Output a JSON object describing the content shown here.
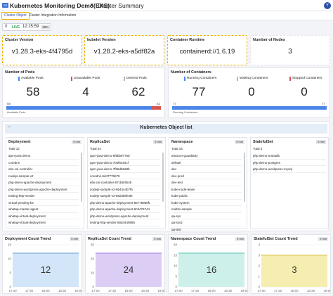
{
  "header": {
    "logo": "CF",
    "app": "Kubernetes Monitoring Demo(EKS)",
    "page": "Cluster Summary",
    "avatar": "Y"
  },
  "tabs": [
    "Cluster Object",
    "Cluster Integration Information"
  ],
  "toolbar": {
    "live": "LIVE",
    "time": "12:25:59",
    "range": "10m"
  },
  "info_cards": [
    {
      "title": "Cluster Version",
      "value": "v1.28.3-eks-4f4795d"
    },
    {
      "title": "kubelet Version",
      "value": "v1.28.2-eks-a5df82a"
    },
    {
      "title": "Container Runtime",
      "value": "containerd://1.6.19"
    },
    {
      "title": "Number of Nodes",
      "value": "3"
    }
  ],
  "pods": {
    "title": "Number of Pods",
    "items": [
      {
        "label": "Available Pods",
        "value": 58,
        "color": "#4a86e8"
      },
      {
        "label": "Unavailable Pods",
        "value": 4,
        "color": "#d9534f"
      },
      {
        "label": "Desired Pods",
        "value": 62,
        "color": "#b0b4bc"
      }
    ],
    "bar_caption": "Available Pods"
  },
  "containers": {
    "title": "Number of Containers",
    "items": [
      {
        "label": "Running Containers",
        "value": 77,
        "color": "#4a86e8"
      },
      {
        "label": "Waiting Containers",
        "value": 0,
        "color": "#f0ad4e"
      },
      {
        "label": "Stopped Containers",
        "value": 0,
        "color": "#d9534f"
      }
    ],
    "bar_caption": "Running Containers"
  },
  "object_list": {
    "title": "Kubernetes Object list",
    "panels": [
      {
        "title": "Deployment",
        "badge": "5 min",
        "total": "Total 12",
        "items": [
          "apm-java-demo",
          "coredns",
          "ebs-csi-controller",
          "nodejs-sample-v2",
          "php-demo-apache-deployment",
          "php-demo-wordpress-apache-deployment",
          "testing-http-sender",
          "virtual-pending-be",
          "whatap-master-agent",
          "whatap-virtual-deployment",
          "whatap-virtual-deployment"
        ]
      },
      {
        "title": "ReplicaSet",
        "badge": "5 min",
        "total": "Total 24",
        "items": [
          "apm-java-demo-6f6bb9776d",
          "apm-java-demo-7b6f6484cf",
          "apm-java-demo-7fb5db5d8b",
          "coredns-6d4777bb79",
          "ebs-csi-controller-57cb6f4b4b",
          "nodejs-sample-v2-864444b7f6",
          "nodejs-sample-v2-86d4b6fc9b",
          "php-demo-apache-deployment-86778958fc",
          "php-demo-apache-deployment-8c9475744",
          "php-demo-wordpress-apache-deployment",
          "testing-http-sender-58d4449885"
        ]
      },
      {
        "title": "Namespace",
        "badge": "5 min",
        "total": "Total 16",
        "items": [
          "amazon-guardduty",
          "default",
          "dev",
          "dev-prod",
          "dev-test",
          "kube-node-lease",
          "kube-public",
          "kube-system",
          "multitx-sample",
          "qa-sys",
          "qa-sys2",
          "qa-test"
        ]
      },
      {
        "title": "StatefulSet",
        "badge": "5 min",
        "total": "Total 3",
        "items": [
          "php-demo-mariadb",
          "php-demo-postgres",
          "php-demo-wordpress-mysql"
        ]
      }
    ]
  },
  "trends": [
    {
      "title": "Deployment Count Trend",
      "badge": "5 min",
      "value": 12,
      "x": [
        "17:00",
        "17:30",
        "18:00",
        "18:30",
        "19:00"
      ],
      "series": [
        12,
        12,
        12,
        12,
        12
      ],
      "ylim": [
        0,
        15
      ],
      "yticks": [
        0,
        5,
        10,
        15
      ],
      "color": "#6aa0d8",
      "fill": "#d3e5f8"
    },
    {
      "title": "ReplicaSet Count Trend",
      "badge": "5 min",
      "value": 24,
      "x": [
        "17:00",
        "17:30",
        "18:00",
        "18:30",
        "19:00"
      ],
      "series": [
        24,
        24,
        24,
        24,
        24
      ],
      "ylim": [
        0,
        30
      ],
      "yticks": [
        0,
        10,
        20,
        30
      ],
      "color": "#9f7fe0",
      "fill": "#dccdf5"
    },
    {
      "title": "Namespace Count Trend",
      "badge": "5 min",
      "value": 16,
      "x": [
        "17:00",
        "17:30",
        "18:00",
        "18:30",
        "19:00"
      ],
      "series": [
        16,
        16,
        16,
        16,
        16
      ],
      "ylim": [
        0,
        20
      ],
      "yticks": [
        0,
        5,
        10,
        15,
        20
      ],
      "color": "#5cc4b5",
      "fill": "#cdf0ea"
    },
    {
      "title": "StatefulSet Count Trend",
      "badge": "5 min",
      "value": 3,
      "x": [
        "17:00",
        "17:30",
        "18:00",
        "18:30",
        "19:00"
      ],
      "series": [
        3,
        3,
        3,
        3,
        3
      ],
      "ylim": [
        0,
        4
      ],
      "yticks": [
        0,
        1,
        2,
        3,
        4
      ],
      "color": "#d9c24a",
      "fill": "#f6eeb0"
    }
  ]
}
